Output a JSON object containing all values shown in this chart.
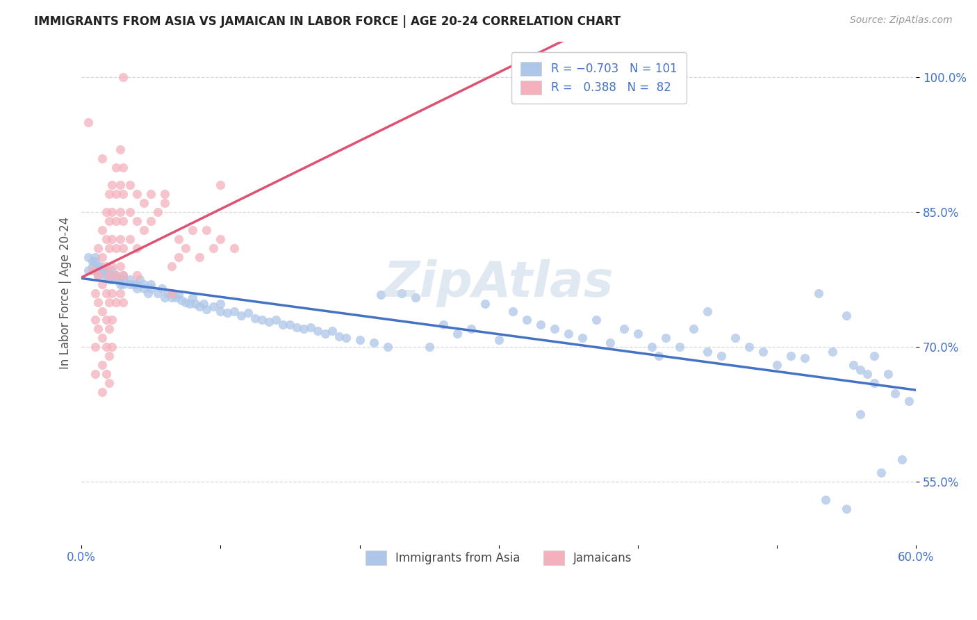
{
  "title": "IMMIGRANTS FROM ASIA VS JAMAICAN IN LABOR FORCE | AGE 20-24 CORRELATION CHART",
  "source": "Source: ZipAtlas.com",
  "ylabel": "In Labor Force | Age 20-24",
  "x_min": 0.0,
  "x_max": 0.6,
  "y_min": 0.48,
  "y_max": 1.04,
  "y_ticks": [
    0.55,
    0.7,
    0.85,
    1.0
  ],
  "y_tick_labels": [
    "55.0%",
    "70.0%",
    "85.0%",
    "100.0%"
  ],
  "blue_line_color": "#4472c4",
  "pink_line_color": "#e05070",
  "dash_color": "#b0b0b0",
  "scatter_blue_color": "#aec6e8",
  "scatter_pink_color": "#f4b0bc",
  "background_color": "#ffffff",
  "grid_color": "#d8d8d8",
  "watermark": "ZipAtlas",
  "blue_scatter": [
    [
      0.005,
      0.8
    ],
    [
      0.005,
      0.785
    ],
    [
      0.008,
      0.795
    ],
    [
      0.008,
      0.79
    ],
    [
      0.01,
      0.8
    ],
    [
      0.01,
      0.795
    ],
    [
      0.01,
      0.785
    ],
    [
      0.012,
      0.79
    ],
    [
      0.012,
      0.785
    ],
    [
      0.012,
      0.78
    ],
    [
      0.014,
      0.79
    ],
    [
      0.014,
      0.785
    ],
    [
      0.016,
      0.785
    ],
    [
      0.016,
      0.78
    ],
    [
      0.018,
      0.785
    ],
    [
      0.018,
      0.78
    ],
    [
      0.02,
      0.78
    ],
    [
      0.02,
      0.775
    ],
    [
      0.022,
      0.785
    ],
    [
      0.022,
      0.78
    ],
    [
      0.022,
      0.775
    ],
    [
      0.025,
      0.78
    ],
    [
      0.025,
      0.775
    ],
    [
      0.028,
      0.775
    ],
    [
      0.028,
      0.77
    ],
    [
      0.03,
      0.78
    ],
    [
      0.03,
      0.775
    ],
    [
      0.03,
      0.77
    ],
    [
      0.035,
      0.775
    ],
    [
      0.035,
      0.77
    ],
    [
      0.038,
      0.77
    ],
    [
      0.04,
      0.77
    ],
    [
      0.04,
      0.765
    ],
    [
      0.042,
      0.775
    ],
    [
      0.045,
      0.77
    ],
    [
      0.045,
      0.765
    ],
    [
      0.048,
      0.76
    ],
    [
      0.05,
      0.77
    ],
    [
      0.05,
      0.765
    ],
    [
      0.055,
      0.76
    ],
    [
      0.058,
      0.765
    ],
    [
      0.06,
      0.755
    ],
    [
      0.062,
      0.76
    ],
    [
      0.065,
      0.76
    ],
    [
      0.065,
      0.755
    ],
    [
      0.068,
      0.755
    ],
    [
      0.07,
      0.758
    ],
    [
      0.072,
      0.752
    ],
    [
      0.075,
      0.75
    ],
    [
      0.078,
      0.748
    ],
    [
      0.08,
      0.755
    ],
    [
      0.082,
      0.748
    ],
    [
      0.085,
      0.745
    ],
    [
      0.088,
      0.748
    ],
    [
      0.09,
      0.742
    ],
    [
      0.095,
      0.745
    ],
    [
      0.1,
      0.74
    ],
    [
      0.1,
      0.748
    ],
    [
      0.105,
      0.738
    ],
    [
      0.11,
      0.74
    ],
    [
      0.115,
      0.735
    ],
    [
      0.12,
      0.738
    ],
    [
      0.125,
      0.732
    ],
    [
      0.13,
      0.73
    ],
    [
      0.135,
      0.728
    ],
    [
      0.14,
      0.73
    ],
    [
      0.145,
      0.725
    ],
    [
      0.15,
      0.725
    ],
    [
      0.155,
      0.722
    ],
    [
      0.16,
      0.72
    ],
    [
      0.165,
      0.722
    ],
    [
      0.17,
      0.718
    ],
    [
      0.175,
      0.715
    ],
    [
      0.18,
      0.718
    ],
    [
      0.185,
      0.712
    ],
    [
      0.19,
      0.71
    ],
    [
      0.2,
      0.708
    ],
    [
      0.21,
      0.705
    ],
    [
      0.215,
      0.758
    ],
    [
      0.22,
      0.7
    ],
    [
      0.23,
      0.76
    ],
    [
      0.24,
      0.755
    ],
    [
      0.25,
      0.7
    ],
    [
      0.26,
      0.725
    ],
    [
      0.27,
      0.715
    ],
    [
      0.28,
      0.72
    ],
    [
      0.29,
      0.748
    ],
    [
      0.3,
      0.708
    ],
    [
      0.31,
      0.74
    ],
    [
      0.32,
      0.73
    ],
    [
      0.33,
      0.725
    ],
    [
      0.34,
      0.72
    ],
    [
      0.35,
      0.715
    ],
    [
      0.36,
      0.71
    ],
    [
      0.37,
      0.73
    ],
    [
      0.38,
      0.705
    ],
    [
      0.39,
      0.72
    ],
    [
      0.4,
      0.715
    ],
    [
      0.41,
      0.7
    ],
    [
      0.415,
      0.69
    ],
    [
      0.42,
      0.71
    ],
    [
      0.43,
      0.7
    ],
    [
      0.44,
      0.72
    ],
    [
      0.45,
      0.74
    ],
    [
      0.45,
      0.695
    ],
    [
      0.46,
      0.69
    ],
    [
      0.47,
      0.71
    ],
    [
      0.48,
      0.7
    ],
    [
      0.49,
      0.695
    ],
    [
      0.5,
      0.68
    ],
    [
      0.51,
      0.69
    ],
    [
      0.52,
      0.688
    ],
    [
      0.53,
      0.76
    ],
    [
      0.54,
      0.695
    ],
    [
      0.55,
      0.735
    ],
    [
      0.555,
      0.68
    ],
    [
      0.56,
      0.675
    ],
    [
      0.565,
      0.67
    ],
    [
      0.57,
      0.69
    ],
    [
      0.575,
      0.56
    ],
    [
      0.58,
      0.67
    ],
    [
      0.585,
      0.648
    ],
    [
      0.59,
      0.575
    ],
    [
      0.595,
      0.64
    ],
    [
      0.55,
      0.52
    ],
    [
      0.56,
      0.625
    ],
    [
      0.57,
      0.66
    ],
    [
      0.535,
      0.53
    ]
  ],
  "pink_scatter": [
    [
      0.008,
      0.785
    ],
    [
      0.01,
      0.76
    ],
    [
      0.01,
      0.73
    ],
    [
      0.01,
      0.7
    ],
    [
      0.01,
      0.67
    ],
    [
      0.012,
      0.81
    ],
    [
      0.012,
      0.78
    ],
    [
      0.012,
      0.75
    ],
    [
      0.012,
      0.72
    ],
    [
      0.015,
      0.83
    ],
    [
      0.015,
      0.8
    ],
    [
      0.015,
      0.77
    ],
    [
      0.015,
      0.74
    ],
    [
      0.015,
      0.71
    ],
    [
      0.015,
      0.68
    ],
    [
      0.015,
      0.65
    ],
    [
      0.018,
      0.85
    ],
    [
      0.018,
      0.82
    ],
    [
      0.018,
      0.79
    ],
    [
      0.018,
      0.76
    ],
    [
      0.018,
      0.73
    ],
    [
      0.018,
      0.7
    ],
    [
      0.018,
      0.67
    ],
    [
      0.02,
      0.87
    ],
    [
      0.02,
      0.84
    ],
    [
      0.02,
      0.81
    ],
    [
      0.02,
      0.78
    ],
    [
      0.02,
      0.75
    ],
    [
      0.02,
      0.72
    ],
    [
      0.02,
      0.69
    ],
    [
      0.02,
      0.66
    ],
    [
      0.022,
      0.88
    ],
    [
      0.022,
      0.85
    ],
    [
      0.022,
      0.82
    ],
    [
      0.022,
      0.79
    ],
    [
      0.022,
      0.76
    ],
    [
      0.022,
      0.73
    ],
    [
      0.022,
      0.7
    ],
    [
      0.025,
      0.9
    ],
    [
      0.025,
      0.87
    ],
    [
      0.025,
      0.84
    ],
    [
      0.025,
      0.81
    ],
    [
      0.025,
      0.78
    ],
    [
      0.025,
      0.75
    ],
    [
      0.028,
      0.92
    ],
    [
      0.028,
      0.88
    ],
    [
      0.028,
      0.85
    ],
    [
      0.028,
      0.82
    ],
    [
      0.028,
      0.79
    ],
    [
      0.028,
      0.76
    ],
    [
      0.03,
      0.9
    ],
    [
      0.03,
      0.87
    ],
    [
      0.03,
      0.84
    ],
    [
      0.03,
      0.81
    ],
    [
      0.03,
      0.78
    ],
    [
      0.03,
      0.75
    ],
    [
      0.035,
      0.88
    ],
    [
      0.035,
      0.85
    ],
    [
      0.035,
      0.82
    ],
    [
      0.04,
      0.87
    ],
    [
      0.04,
      0.84
    ],
    [
      0.04,
      0.81
    ],
    [
      0.04,
      0.78
    ],
    [
      0.045,
      0.86
    ],
    [
      0.045,
      0.83
    ],
    [
      0.05,
      0.87
    ],
    [
      0.05,
      0.84
    ],
    [
      0.055,
      0.85
    ],
    [
      0.06,
      0.86
    ],
    [
      0.065,
      0.79
    ],
    [
      0.065,
      0.76
    ],
    [
      0.07,
      0.82
    ],
    [
      0.07,
      0.8
    ],
    [
      0.075,
      0.81
    ],
    [
      0.08,
      0.83
    ],
    [
      0.085,
      0.8
    ],
    [
      0.09,
      0.83
    ],
    [
      0.095,
      0.81
    ],
    [
      0.1,
      0.82
    ],
    [
      0.11,
      0.81
    ],
    [
      0.03,
      1.0
    ],
    [
      0.06,
      0.87
    ],
    [
      0.1,
      0.88
    ],
    [
      0.005,
      0.95
    ],
    [
      0.015,
      0.91
    ]
  ]
}
